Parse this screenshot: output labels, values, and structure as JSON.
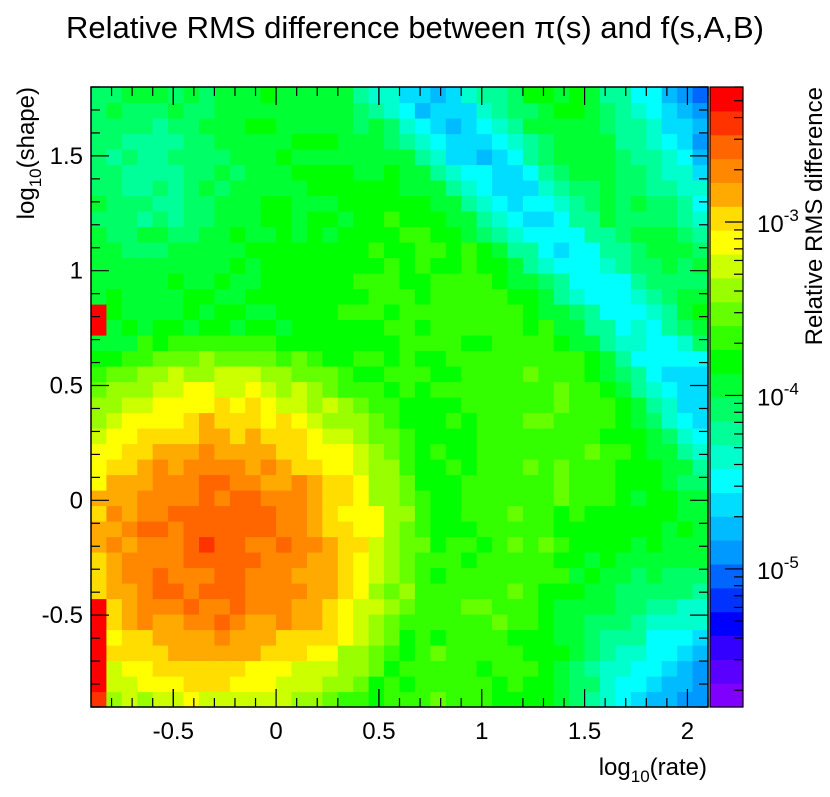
{
  "chart_data": {
    "type": "heatmap",
    "title": "Relative RMS difference between π(s) and f(s,A,B)",
    "xlabel": {
      "base": "log",
      "sub": "10",
      "rest": "(rate)"
    },
    "ylabel": {
      "base": "log",
      "sub": "10",
      "rest": "(shape)"
    },
    "zlabel": "Relative RMS difference",
    "xlim": [
      -0.9,
      2.1
    ],
    "ylim": [
      -0.9,
      1.8
    ],
    "zlim": [
      1.6e-06,
      0.006
    ],
    "z_scale": "log",
    "x_ticks": [
      {
        "value": -0.5,
        "label": "-0.5"
      },
      {
        "value": 0,
        "label": "0"
      },
      {
        "value": 0.5,
        "label": "0.5"
      },
      {
        "value": 1,
        "label": "1"
      },
      {
        "value": 1.5,
        "label": "1.5"
      },
      {
        "value": 2,
        "label": "2"
      }
    ],
    "y_ticks": [
      {
        "value": -0.5,
        "label": "-0.5"
      },
      {
        "value": 0,
        "label": "0"
      },
      {
        "value": 0.5,
        "label": "0.5"
      },
      {
        "value": 1,
        "label": "1"
      },
      {
        "value": 1.5,
        "label": "1.5"
      }
    ],
    "z_ticks": [
      {
        "value": 1e-05,
        "base": "10",
        "exp": "-5"
      },
      {
        "value": 0.0001,
        "base": "10",
        "exp": "-4"
      },
      {
        "value": 0.001,
        "base": "10",
        "exp": "-3"
      }
    ],
    "grid_nx": 40,
    "grid_ny": 40,
    "palette": [
      "#7f00ff",
      "#5a00ff",
      "#3300ff",
      "#0000ff",
      "#0033ff",
      "#0066ff",
      "#0099ff",
      "#00bbff",
      "#00ddff",
      "#00ffff",
      "#00ffcc",
      "#00ff99",
      "#00ff66",
      "#00ff33",
      "#00ff00",
      "#33ff00",
      "#66ff00",
      "#99ff00",
      "#ccff00",
      "#ffff00",
      "#ffdd00",
      "#ffaa00",
      "#ff8800",
      "#ff6600",
      "#ff3300",
      "#ff0000"
    ]
  }
}
